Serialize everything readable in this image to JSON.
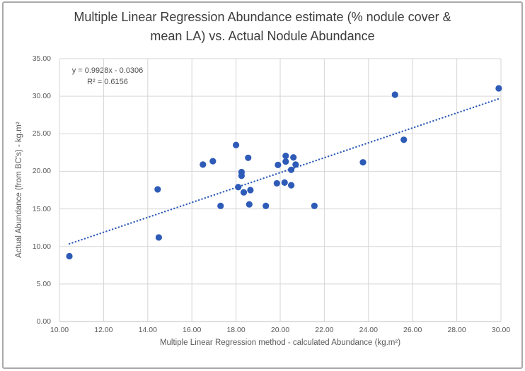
{
  "chart_data": {
    "type": "scatter",
    "title": "Multiple Linear Regression Abundance estimate (% nodule cover & mean LA) vs. Actual Nodule Abundance",
    "title_lines": [
      "Multiple Linear Regression Abundance estimate (% nodule cover &",
      "mean LA) vs. Actual Nodule Abundance"
    ],
    "xlabel": "Multiple Linear Regression method - calculated Abundance (kg.m²)",
    "ylabel": "Actual Abundance (from BC's) - kg.m²",
    "xlim": [
      10,
      30
    ],
    "ylim": [
      0,
      35
    ],
    "x_tick_values": [
      10,
      12,
      14,
      16,
      18,
      20,
      22,
      24,
      26,
      28,
      30
    ],
    "x_tick_labels": [
      "10.00",
      "12.00",
      "14.00",
      "16.00",
      "18.00",
      "20.00",
      "22.00",
      "24.00",
      "26.00",
      "28.00",
      "30.00"
    ],
    "y_tick_values": [
      0,
      5,
      10,
      15,
      20,
      25,
      30,
      35
    ],
    "y_tick_labels": [
      "0.00",
      "5.00",
      "10.00",
      "15.00",
      "20.00",
      "25.00",
      "30.00",
      "35.00"
    ],
    "grid": true,
    "legend": "none",
    "points": [
      [
        10.45,
        8.7
      ],
      [
        14.45,
        17.6
      ],
      [
        14.5,
        11.2
      ],
      [
        16.5,
        20.9
      ],
      [
        16.95,
        21.35
      ],
      [
        17.3,
        15.4
      ],
      [
        18.0,
        23.5
      ],
      [
        18.25,
        19.9
      ],
      [
        18.25,
        19.4
      ],
      [
        18.1,
        17.9
      ],
      [
        18.35,
        17.2
      ],
      [
        18.65,
        17.5
      ],
      [
        18.55,
        21.8
      ],
      [
        18.6,
        15.6
      ],
      [
        19.35,
        15.4
      ],
      [
        19.9,
        20.85
      ],
      [
        19.85,
        18.4
      ],
      [
        20.2,
        18.5
      ],
      [
        20.5,
        18.15
      ],
      [
        20.25,
        22.05
      ],
      [
        20.25,
        21.3
      ],
      [
        20.6,
        21.85
      ],
      [
        20.7,
        20.9
      ],
      [
        20.5,
        20.2
      ],
      [
        21.55,
        15.4
      ],
      [
        23.75,
        21.2
      ],
      [
        25.2,
        30.2
      ],
      [
        25.6,
        24.2
      ],
      [
        29.9,
        31.05
      ]
    ],
    "trendline": {
      "type": "linear",
      "slope": 0.9928,
      "intercept": -0.0306,
      "x_range": [
        10.45,
        30
      ],
      "style": "dotted"
    },
    "annotation": {
      "equation": "y = 0.9928x - 0.0306",
      "r_squared": "R² = 0.6156"
    },
    "colors": {
      "marker": "#2e5bb8",
      "trendline": "#2e5bb8",
      "gridline": "#d6d6d6",
      "axis_line": "#bfbfbf",
      "tick_text": "#595959",
      "title_text": "#3b3b3b"
    }
  }
}
